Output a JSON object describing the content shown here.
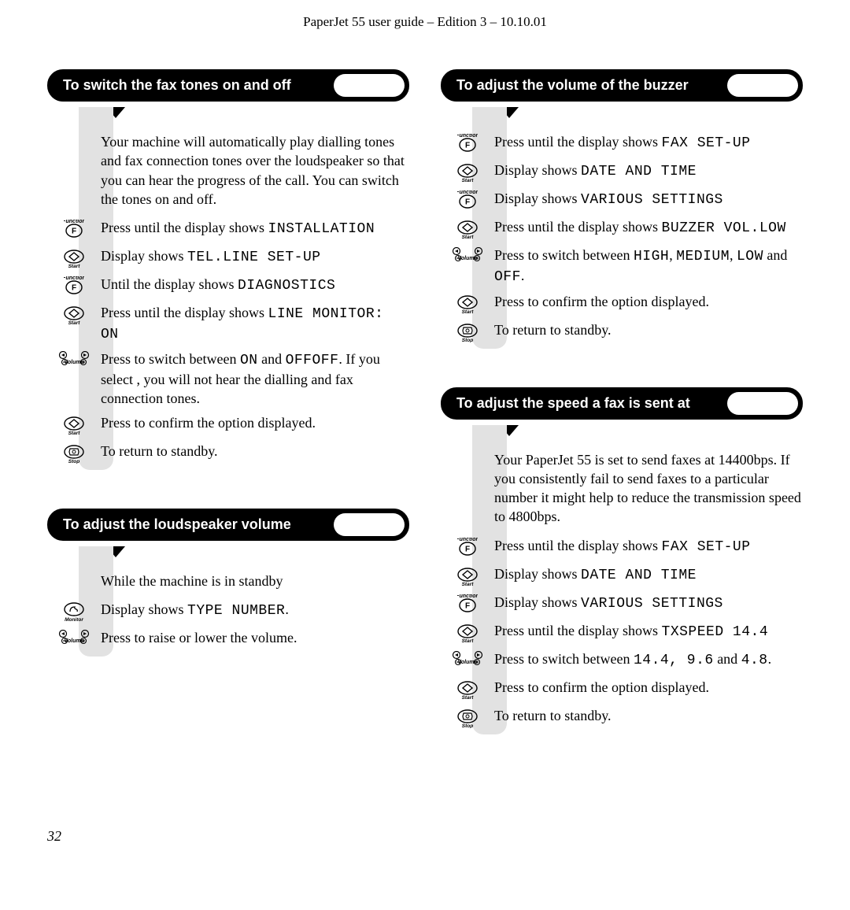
{
  "header": "PaperJet 55 user guide – Edition 3 – 10.10.01",
  "pageNumber": "32",
  "sections": {
    "faxTones": {
      "title": "To switch the fax tones on and off",
      "intro": "Your machine will automatically play dialling tones and fax connection tones over the loudspeaker so that you can hear the progress of the call. You can switch the tones on and off.",
      "steps": [
        {
          "icon": "function",
          "pre": "Press until the display shows ",
          "code": "INSTALLATION",
          "post": ""
        },
        {
          "icon": "start",
          "pre": "Display shows ",
          "code": "TEL.LINE SET-UP",
          "post": ""
        },
        {
          "icon": "function",
          "pre": "Until the display shows ",
          "code": "DIAGNOSTICS",
          "post": ""
        },
        {
          "icon": "start",
          "pre": "Press until the display shows ",
          "code": "LINE MONITOR: ON",
          "post": ""
        },
        {
          "icon": "volume",
          "pre": "Press to switch between ",
          "code": "ON",
          "mid": " and ",
          "code2": "OFF",
          "post": ". If you select ",
          "code3": "OFF",
          "post2": ", you will not hear the dialling and fax connection tones."
        },
        {
          "icon": "start",
          "pre": "Press to confirm the option displayed."
        },
        {
          "icon": "stop",
          "pre": "To return to standby."
        }
      ]
    },
    "loudspeaker": {
      "title": "To adjust the loudspeaker volume",
      "steps": [
        {
          "icon": "none",
          "pre": "While the machine is in standby"
        },
        {
          "icon": "monitor",
          "pre": "Display shows ",
          "code": "TYPE NUMBER",
          "post": "."
        },
        {
          "icon": "volume",
          "pre": "Press to raise or lower the volume."
        }
      ]
    },
    "buzzer": {
      "title": "To adjust the volume of the buzzer",
      "steps": [
        {
          "icon": "function",
          "pre": "Press until the display shows ",
          "code": "FAX SET-UP",
          "post": ""
        },
        {
          "icon": "start",
          "pre": "Display shows ",
          "code": "DATE AND TIME",
          "post": ""
        },
        {
          "icon": "function",
          "pre": "Display shows ",
          "code": "VARIOUS SETTINGS",
          "post": ""
        },
        {
          "icon": "start",
          "pre": "Press until the display shows ",
          "code": "BUZZER VOL.LOW",
          "post": ""
        },
        {
          "icon": "volume",
          "pre": "Press to switch between ",
          "code": "HIGH",
          "mid": ", ",
          "code2": "MEDIUM",
          "mid2": ", ",
          "code3": "LOW",
          "post2": " and ",
          "code4": "OFF",
          "post3": "."
        },
        {
          "icon": "start",
          "pre": "Press to confirm the option displayed."
        },
        {
          "icon": "stop",
          "pre": "To return to standby."
        }
      ]
    },
    "speed": {
      "title": "To adjust the speed a fax is sent at",
      "intro": "Your PaperJet 55 is set to send faxes at 14400bps. If you consistently fail to send faxes to a particular number it might help to reduce the transmission speed to 4800bps.",
      "steps": [
        {
          "icon": "function",
          "pre": "Press until the display shows ",
          "code": "FAX SET-UP",
          "post": ""
        },
        {
          "icon": "start",
          "pre": "Display shows ",
          "code": "DATE AND TIME",
          "post": ""
        },
        {
          "icon": "function",
          "pre": "Display shows ",
          "code": "VARIOUS SETTINGS",
          "post": ""
        },
        {
          "icon": "start",
          "pre": "Press until the display shows ",
          "code": "TXSPEED 14.4",
          "post": ""
        },
        {
          "icon": "volume",
          "pre": "Press to switch between ",
          "code": "14.4, 9.6",
          "mid": " and ",
          "code2": "4.8",
          "post": "."
        },
        {
          "icon": "start",
          "pre": "Press to confirm the option displayed."
        },
        {
          "icon": "stop",
          "pre": "To return to standby."
        }
      ]
    }
  }
}
